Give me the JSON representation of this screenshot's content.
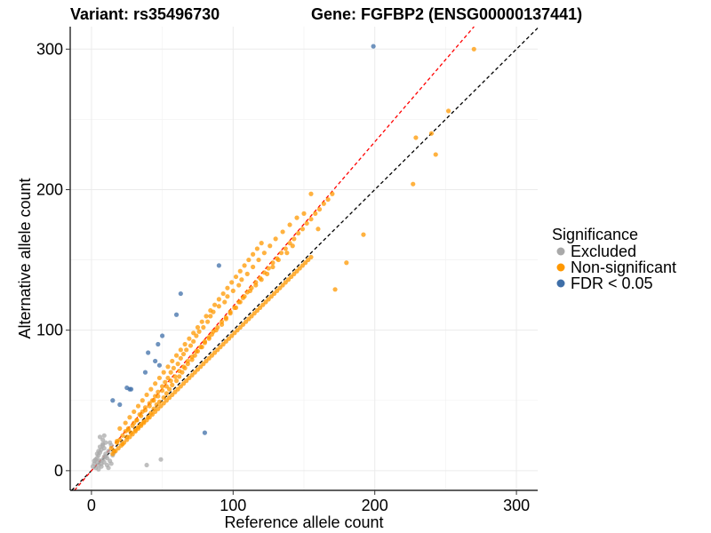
{
  "title_left": "Variant: rs35496730",
  "title_right": "Gene: FGFBP2 (ENSG00000137441)",
  "chart_data": {
    "type": "scatter",
    "title": "Variant: rs35496730    Gene: FGFBP2 (ENSG00000137441)",
    "xlabel": "Reference allele count",
    "ylabel": "Alternative allele count",
    "xlim": [
      -15,
      315
    ],
    "ylim": [
      -14,
      316
    ],
    "xticks": [
      0,
      100,
      200,
      300
    ],
    "yticks": [
      0,
      100,
      200,
      300
    ],
    "x_tick_labels": [
      "0",
      "100",
      "200",
      "300"
    ],
    "y_tick_labels": [
      "0",
      "100",
      "200",
      "300"
    ],
    "grid": true,
    "reference_lines": [
      {
        "name": "identity",
        "color": "#000000",
        "style": "dashed",
        "slope": 1.0,
        "intercept": 0
      },
      {
        "name": "fitted",
        "color": "#ff0000",
        "style": "dashed",
        "slope": 1.17,
        "intercept": 0
      }
    ],
    "legend": {
      "title": "Significance",
      "position": "right",
      "entries": [
        {
          "label": "Excluded",
          "color": "#a9a9a9"
        },
        {
          "label": "Non-significant",
          "color": "#ff9800"
        },
        {
          "label": "FDR < 0.05",
          "color": "#3f6fa8"
        }
      ]
    },
    "series": [
      {
        "name": "Excluded",
        "color": "#a9a9a9",
        "x": [
          1,
          2,
          3,
          4,
          4,
          5,
          5,
          6,
          6,
          7,
          7,
          8,
          8,
          9,
          9,
          10,
          10,
          11,
          12,
          13,
          14,
          15,
          3,
          5,
          7,
          9,
          11,
          4,
          6,
          8,
          10,
          2,
          6,
          12,
          8,
          5,
          14,
          9,
          16,
          13,
          39,
          49
        ],
        "y": [
          3,
          5,
          2,
          6,
          9,
          4,
          11,
          7,
          13,
          5,
          15,
          8,
          18,
          10,
          6,
          12,
          20,
          9,
          14,
          7,
          18,
          11,
          8,
          1,
          3,
          16,
          4,
          12,
          17,
          22,
          10,
          7,
          24,
          2,
          19,
          14,
          5,
          25,
          13,
          20,
          4,
          8
        ]
      },
      {
        "name": "Non-significant",
        "color": "#ff9800",
        "x": [
          14,
          16,
          18,
          20,
          22,
          24,
          25,
          26,
          28,
          30,
          31,
          32,
          33,
          34,
          35,
          36,
          37,
          38,
          40,
          41,
          42,
          43,
          44,
          45,
          46,
          47,
          48,
          50,
          51,
          52,
          53,
          54,
          55,
          56,
          57,
          58,
          60,
          61,
          62,
          63,
          64,
          65,
          66,
          67,
          68,
          70,
          71,
          72,
          73,
          74,
          75,
          76,
          78,
          79,
          80,
          82,
          83,
          84,
          85,
          86,
          88,
          90,
          92,
          94,
          95,
          96,
          98,
          100,
          102,
          104,
          105,
          106,
          108,
          110,
          112,
          114,
          116,
          118,
          120,
          122,
          124,
          126,
          128,
          130,
          132,
          135,
          138,
          140,
          142,
          145,
          150,
          155,
          160,
          172,
          180,
          192,
          227,
          229,
          240,
          243,
          252,
          270,
          20,
          24,
          27,
          30,
          33,
          36,
          39,
          42,
          45,
          48,
          51,
          54,
          57,
          60,
          63,
          66,
          69,
          72,
          75,
          78,
          81,
          84,
          87,
          90,
          93,
          96,
          99,
          102,
          105,
          108,
          111,
          114,
          117,
          120,
          18,
          22,
          26,
          29,
          32,
          35,
          38,
          41,
          44,
          47,
          50,
          53,
          56,
          59,
          62,
          65,
          68,
          71,
          74,
          77,
          80,
          83,
          86,
          89,
          92,
          95,
          98,
          101,
          104,
          107,
          110,
          113,
          116,
          119,
          122,
          125,
          128,
          131,
          134,
          137,
          140,
          143,
          146,
          149,
          152,
          155,
          158,
          161,
          164,
          167,
          170,
          15,
          17,
          19,
          21,
          23,
          25,
          27,
          29,
          31,
          33,
          35,
          37,
          39,
          41,
          43,
          45,
          47,
          49,
          51,
          53,
          55,
          57,
          59,
          61,
          63,
          65,
          67,
          69,
          71,
          73,
          75,
          77,
          79,
          81,
          83,
          85,
          87,
          89,
          91,
          93,
          95,
          97,
          99,
          101,
          103,
          105,
          107,
          109,
          111,
          113,
          115,
          117,
          119,
          121,
          123,
          125,
          127,
          129,
          131,
          133,
          135,
          137,
          139,
          141,
          143,
          145,
          147,
          149,
          151,
          153,
          155
        ],
        "y": [
          16,
          14,
          20,
          22,
          19,
          28,
          24,
          30,
          27,
          34,
          29,
          36,
          31,
          40,
          33,
          42,
          35,
          45,
          38,
          48,
          41,
          50,
          44,
          53,
          47,
          56,
          49,
          60,
          52,
          63,
          55,
          66,
          58,
          70,
          61,
          73,
          64,
          76,
          67,
          80,
          70,
          83,
          73,
          86,
          76,
          89,
          79,
          92,
          82,
          96,
          85,
          99,
          88,
          102,
          91,
          106,
          94,
          110,
          97,
          113,
          100,
          117,
          104,
          120,
          108,
          124,
          112,
          128,
          116,
          132,
          120,
          136,
          124,
          140,
          128,
          145,
          132,
          150,
          136,
          155,
          140,
          160,
          145,
          165,
          150,
          170,
          155,
          175,
          160,
          180,
          183,
          197,
          172,
          129,
          148,
          168,
          204,
          237,
          240,
          225,
          256,
          300,
          30,
          34,
          38,
          42,
          46,
          50,
          54,
          58,
          62,
          66,
          70,
          74,
          78,
          82,
          86,
          90,
          94,
          98,
          102,
          106,
          110,
          114,
          118,
          122,
          126,
          130,
          134,
          138,
          142,
          146,
          150,
          154,
          158,
          162,
          21,
          25,
          29,
          32,
          36,
          39,
          43,
          46,
          50,
          53,
          57,
          60,
          64,
          67,
          71,
          74,
          78,
          81,
          85,
          88,
          92,
          95,
          99,
          102,
          106,
          109,
          113,
          116,
          120,
          123,
          127,
          130,
          134,
          137,
          141,
          144,
          148,
          151,
          155,
          158,
          162,
          165,
          169,
          172,
          176,
          179,
          183,
          186,
          190,
          193,
          197,
          12,
          14,
          16,
          18,
          20,
          22,
          24,
          26,
          28,
          30,
          32,
          34,
          36,
          38,
          40,
          42,
          44,
          46,
          48,
          50,
          52,
          54,
          56,
          58,
          60,
          62,
          64,
          66,
          68,
          70,
          72,
          74,
          76,
          78,
          80,
          82,
          84,
          86,
          88,
          90,
          92,
          94,
          96,
          98,
          100,
          102,
          104,
          106,
          108,
          110,
          112,
          114,
          116,
          118,
          120,
          122,
          124,
          126,
          128,
          130,
          132,
          134,
          136,
          138,
          140,
          142,
          144,
          146,
          148,
          150,
          152
        ]
      },
      {
        "name": "FDR < 0.05",
        "color": "#3f6fa8",
        "x": [
          199,
          90,
          80,
          63,
          60,
          50,
          47,
          48,
          45,
          40,
          38,
          28,
          27,
          25,
          20,
          15
        ],
        "y": [
          302,
          146,
          27,
          126,
          111,
          96,
          90,
          75,
          78,
          84,
          70,
          58,
          58,
          59,
          47,
          50
        ]
      }
    ]
  }
}
